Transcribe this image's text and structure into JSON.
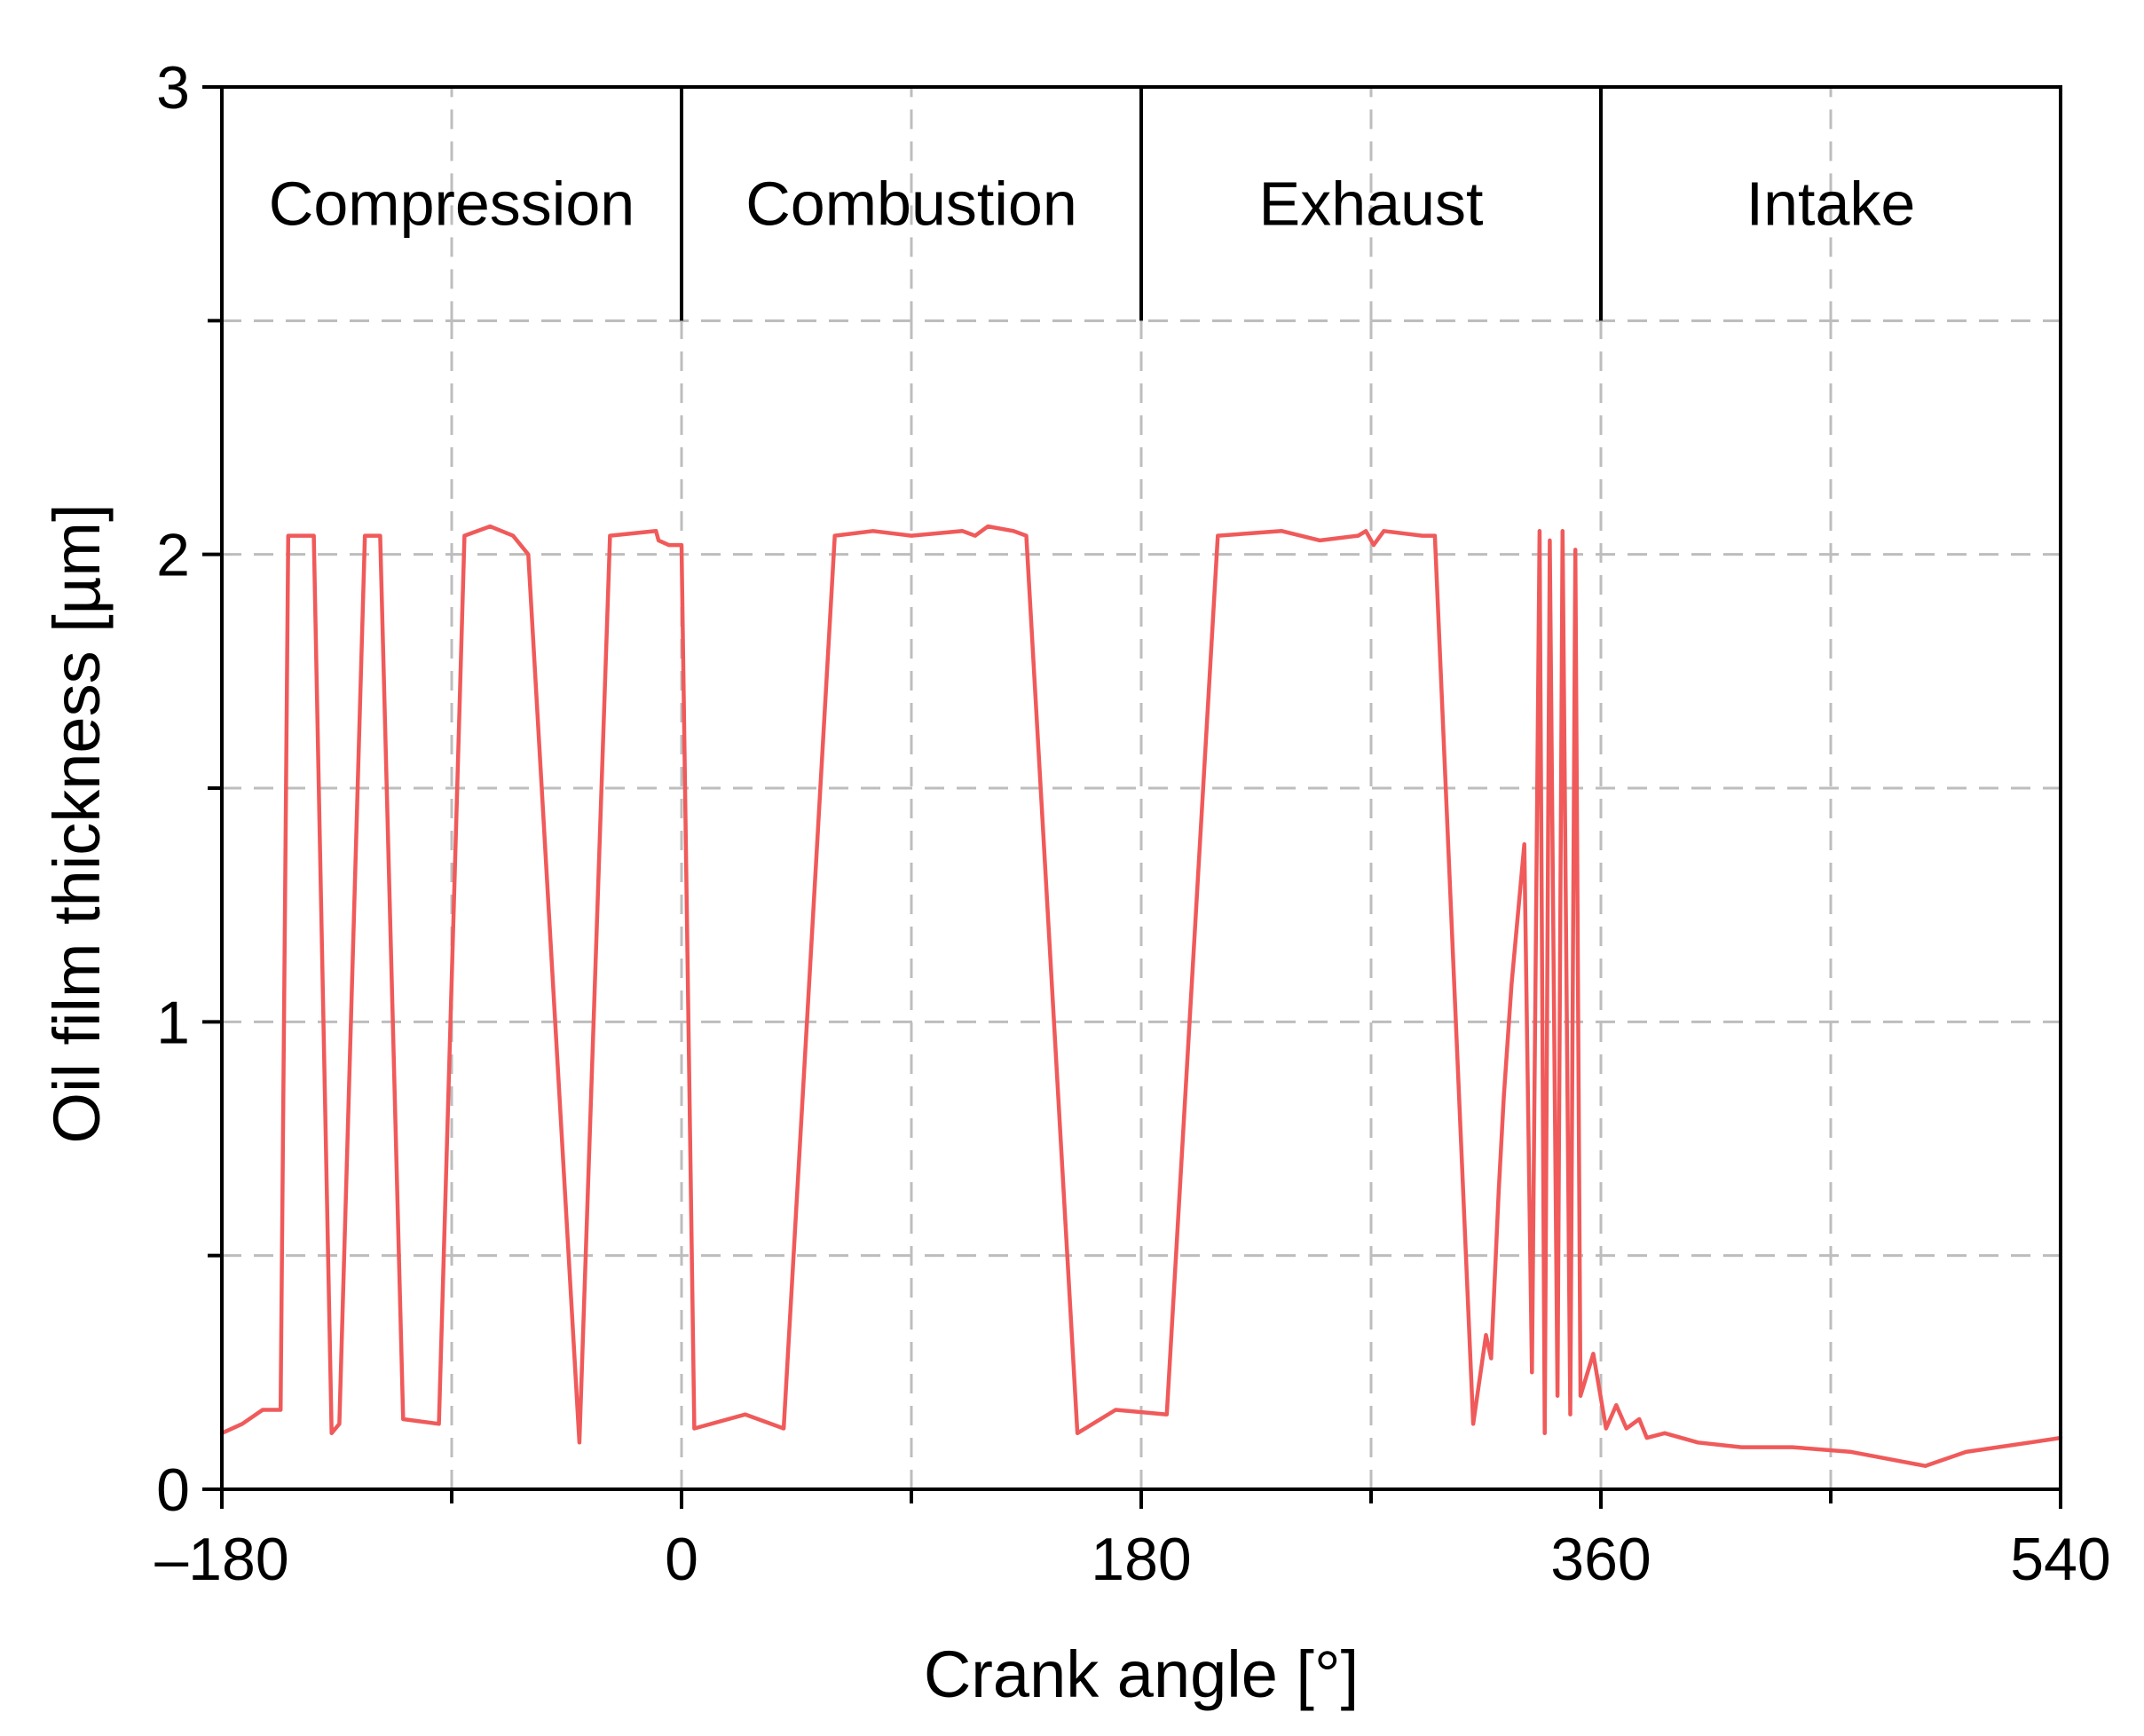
{
  "chart_data": {
    "type": "line",
    "xlabel": "Crank angle [°]",
    "ylabel": "Oil film thickness [µm]",
    "xlim": [
      -180,
      540
    ],
    "ylim": [
      0,
      3
    ],
    "x_ticks": [
      -180,
      0,
      180,
      360,
      540
    ],
    "x_tick_labels": [
      "–180",
      "0",
      "180",
      "360",
      "540"
    ],
    "x_minor_gridlines": [
      -90,
      90,
      270,
      450
    ],
    "y_ticks": [
      0,
      1,
      2,
      3
    ],
    "y_tick_labels": [
      "0",
      "1",
      "2",
      "3"
    ],
    "y_minor_gridlines": [
      0.5,
      1.5,
      2.5
    ],
    "grid": true,
    "grid_style": "dashed",
    "phase_band": {
      "y_from": 2.5,
      "y_to": 3,
      "boundaries": [
        0,
        180,
        360
      ],
      "labels": [
        {
          "text": "Compression",
          "x_center": -90
        },
        {
          "text": "Combustion",
          "x_center": 90
        },
        {
          "text": "Exhaust",
          "x_center": 270
        },
        {
          "text": "Intake",
          "x_center": 450
        }
      ]
    },
    "series": [
      {
        "color": "#f05a5a",
        "x": [
          -180,
          -172,
          -164,
          -157,
          -154,
          -144,
          -137,
          -134,
          -124,
          -118,
          -109,
          -95,
          -85,
          -75,
          -66,
          -60,
          -40,
          -28,
          -10,
          -9,
          -5,
          0,
          5,
          25,
          40,
          60,
          75,
          90,
          110,
          115,
          120,
          130,
          135,
          155,
          170,
          190,
          210,
          235,
          250,
          265,
          268,
          271,
          275,
          290,
          295,
          310,
          315,
          317,
          320,
          322,
          325,
          330,
          333,
          336,
          338,
          340,
          343,
          345,
          348,
          350,
          352,
          357,
          362,
          366,
          370,
          375,
          378,
          385,
          398,
          415,
          435,
          458,
          487,
          503,
          528,
          540
        ],
        "y": [
          0.12,
          0.14,
          0.17,
          0.17,
          2.04,
          2.04,
          0.12,
          0.14,
          2.04,
          2.04,
          0.15,
          0.14,
          2.04,
          2.06,
          2.04,
          2.0,
          0.1,
          2.04,
          2.05,
          2.03,
          2.02,
          2.02,
          0.13,
          0.16,
          0.13,
          2.04,
          2.05,
          2.04,
          2.05,
          2.04,
          2.06,
          2.05,
          2.04,
          0.12,
          0.17,
          0.16,
          2.04,
          2.05,
          2.03,
          2.04,
          2.05,
          2.02,
          2.05,
          2.04,
          2.04,
          0.14,
          0.33,
          0.28,
          0.64,
          0.84,
          1.08,
          1.38,
          0.25,
          2.05,
          0.12,
          2.03,
          0.2,
          2.05,
          0.16,
          2.01,
          0.2,
          0.29,
          0.13,
          0.18,
          0.13,
          0.15,
          0.11,
          0.12,
          0.1,
          0.09,
          0.09,
          0.08,
          0.05,
          0.08,
          0.1,
          0.11
        ]
      }
    ]
  }
}
